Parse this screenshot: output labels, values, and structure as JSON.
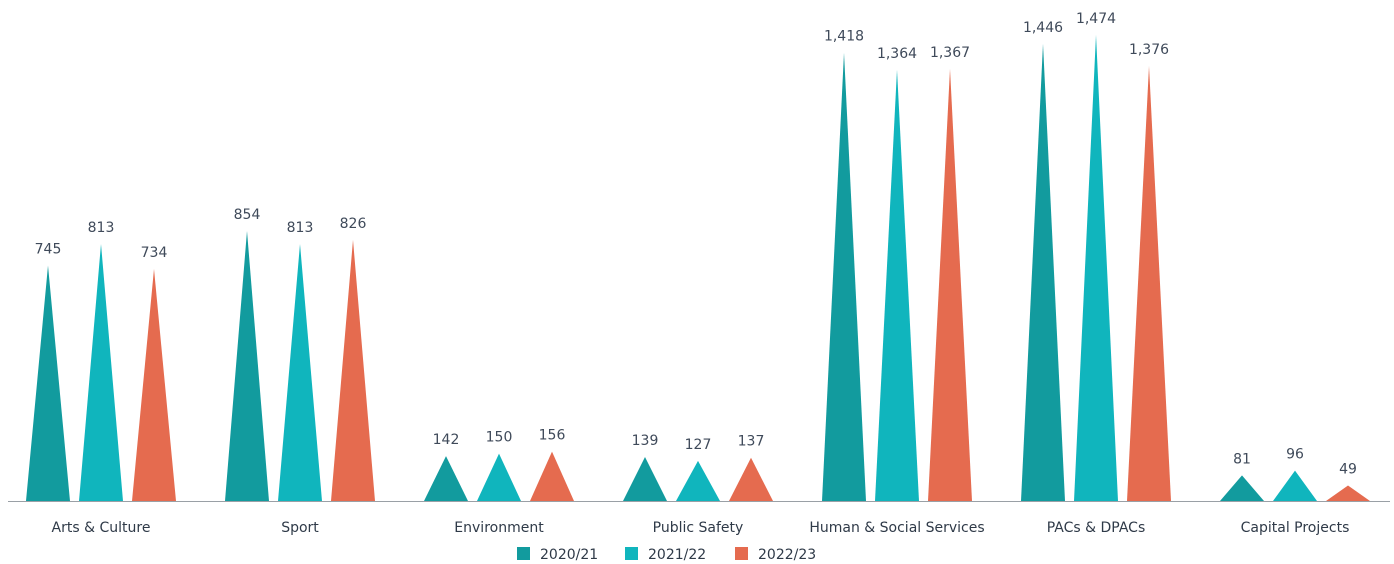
{
  "chart_data": {
    "type": "bar",
    "bar_shape": "triangle",
    "categories": [
      "Arts & Culture",
      "Sport",
      "Environment",
      "Public Safety",
      "Human & Social Services",
      "PACs & DPACs",
      "Capital Projects"
    ],
    "series": [
      {
        "name": "2020/21",
        "color": "#129b9e",
        "values": [
          745,
          854,
          142,
          139,
          1418,
          1446,
          81
        ]
      },
      {
        "name": "2021/22",
        "color": "#10b5bd",
        "values": [
          813,
          813,
          150,
          127,
          1364,
          1474,
          96
        ]
      },
      {
        "name": "2022/23",
        "color": "#e56b4f",
        "values": [
          734,
          826,
          156,
          137,
          1367,
          1376,
          49
        ]
      }
    ],
    "value_labels": [
      [
        "745",
        "854",
        "142",
        "139",
        "1,418",
        "1,446",
        "81"
      ],
      [
        "813",
        "813",
        "150",
        "127",
        "1,364",
        "1,474",
        "96"
      ],
      [
        "734",
        "826",
        "156",
        "137",
        "1,367",
        "1,376",
        "49"
      ]
    ],
    "ylim": [
      0,
      1500
    ],
    "grid": false,
    "legend": "bottom-center"
  }
}
